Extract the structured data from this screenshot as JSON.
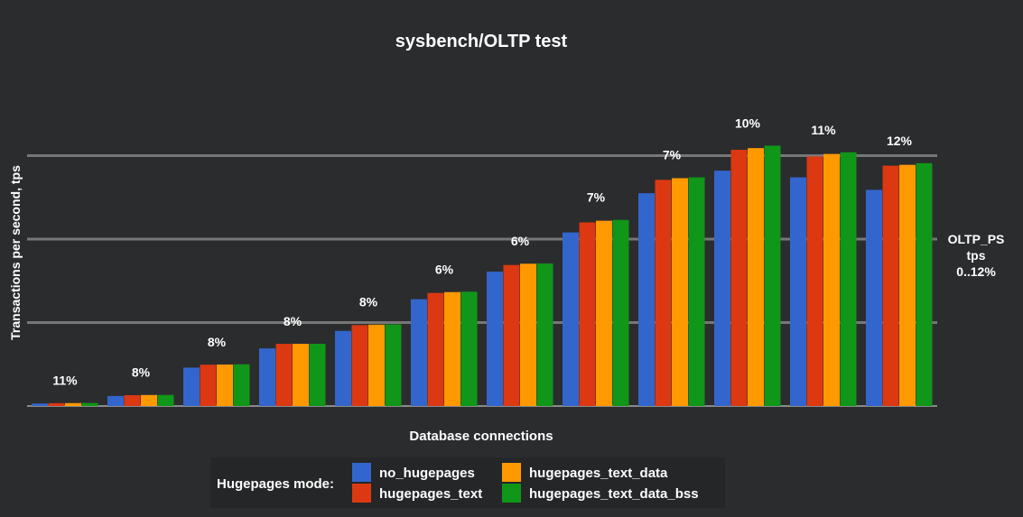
{
  "chart_data": {
    "type": "bar",
    "title": "sysbench/OLTP test",
    "xlabel": "Database connections",
    "ylabel": "Transactions per second, tps",
    "ylim": [
      0,
      3
    ],
    "grid": true,
    "categories": [
      "",
      "",
      "",
      "",
      "",
      "",
      "",
      "",
      "",
      "",
      "",
      ""
    ],
    "series": [
      {
        "name": "no_hugepages",
        "color": "#3366cc",
        "values": [
          0.03,
          0.12,
          0.46,
          0.69,
          0.9,
          1.28,
          1.61,
          2.08,
          2.55,
          2.82,
          2.74,
          2.59
        ]
      },
      {
        "name": "hugepages_text",
        "color": "#dc3912",
        "values": [
          0.034,
          0.13,
          0.495,
          0.745,
          0.97,
          1.355,
          1.69,
          2.2,
          2.71,
          3.07,
          2.99,
          2.88
        ]
      },
      {
        "name": "hugepages_text_data",
        "color": "#ff9900",
        "values": [
          0.035,
          0.132,
          0.497,
          0.745,
          0.975,
          1.365,
          1.705,
          2.22,
          2.73,
          3.09,
          3.02,
          2.89
        ]
      },
      {
        "name": "hugepages_text_data_bss",
        "color": "#109618",
        "values": [
          0.036,
          0.133,
          0.5,
          0.746,
          0.978,
          1.37,
          1.708,
          2.23,
          2.74,
          3.12,
          3.04,
          2.91
        ]
      }
    ],
    "annotations": [
      "11%",
      "8%",
      "8%",
      "8%",
      "8%",
      "6%",
      "6%",
      "7%",
      "7%",
      "10%",
      "11%",
      "12%"
    ],
    "right_axis_label": [
      "OLTP_PS",
      "tps",
      "0..12%"
    ],
    "legend": {
      "placement": "bottom",
      "title": "Hugepages mode:"
    }
  }
}
